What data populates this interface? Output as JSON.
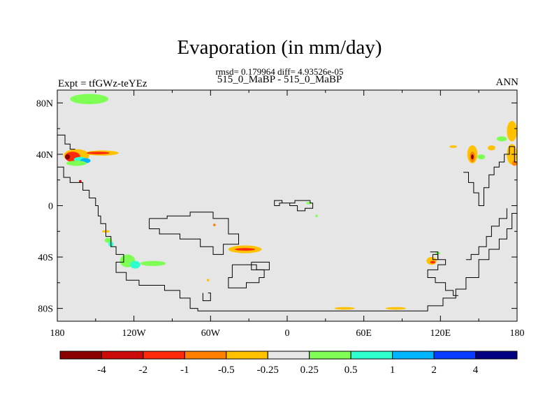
{
  "header": {
    "title": "Evaporation (in mm/day)",
    "stats": "rmsd= 0.179964 diff= 4.93526e-05",
    "cases": "515_0_MaBP - 515_0_MaBP",
    "expt": "Expt = tfGWz-teYEz",
    "season": "ANN"
  },
  "chart_data": {
    "type": "heatmap",
    "title": "Evaporation (in mm/day)",
    "subtitle": "515_0_MaBP - 515_0_MaBP",
    "stats": {
      "rmsd": 0.179964,
      "diff": 4.93526e-05
    },
    "left_label": "Expt = tfGWz-teYEz",
    "right_label": "ANN",
    "xlim": [
      -180,
      180
    ],
    "ylim": [
      -90,
      90
    ],
    "x_ticks": [
      {
        "value": -180,
        "label": "180"
      },
      {
        "value": -120,
        "label": "120W"
      },
      {
        "value": -60,
        "label": "60W"
      },
      {
        "value": 0,
        "label": "0"
      },
      {
        "value": 60,
        "label": "60E"
      },
      {
        "value": 120,
        "label": "120E"
      },
      {
        "value": 180,
        "label": "180"
      }
    ],
    "y_ticks": [
      {
        "value": 80,
        "label": "80N"
      },
      {
        "value": 40,
        "label": "40N"
      },
      {
        "value": 0,
        "label": "0"
      },
      {
        "value": -40,
        "label": "40S"
      },
      {
        "value": -80,
        "label": "80S"
      }
    ],
    "background_color": "#e6e6e6",
    "colorbar": {
      "levels": [
        "-4",
        "-2",
        "-1",
        "-0.5",
        "-0.25",
        "0.25",
        "0.5",
        "1",
        "2",
        "4"
      ],
      "colors": [
        "#8b0000",
        "#cc0a0a",
        "#ff2a0a",
        "#ff7f00",
        "#ffc100",
        "#e6e6e6",
        "#7fff55",
        "#2fffcf",
        "#00b4ff",
        "#0a3cff",
        "#000080"
      ]
    },
    "anomalies": [
      {
        "lon": -155,
        "lat": 83,
        "rx": 15,
        "ry": 4,
        "color": "#7fff55"
      },
      {
        "lon": -165,
        "lat": 39,
        "rx": 10,
        "ry": 5,
        "color": "#ffc100"
      },
      {
        "lon": -168,
        "lat": 38,
        "rx": 6,
        "ry": 4,
        "color": "#ff2a0a"
      },
      {
        "lon": -172,
        "lat": 38,
        "rx": 2,
        "ry": 2,
        "color": "#8b0000"
      },
      {
        "lon": -162,
        "lat": 36,
        "rx": 5,
        "ry": 2,
        "color": "#2fffcf"
      },
      {
        "lon": -158,
        "lat": 35,
        "rx": 4,
        "ry": 2,
        "color": "#00b4ff"
      },
      {
        "lon": -145,
        "lat": 41,
        "rx": 13,
        "ry": 2,
        "color": "#ffc100"
      },
      {
        "lon": -148,
        "lat": 41,
        "rx": 9,
        "ry": 1,
        "color": "#ff2a0a"
      },
      {
        "lon": -165,
        "lat": 33,
        "rx": 8,
        "ry": 2,
        "color": "#7fff55"
      },
      {
        "lon": -162,
        "lat": 19,
        "rx": 1,
        "ry": 1,
        "color": "#cc0a0a"
      },
      {
        "lon": -142,
        "lat": -20,
        "rx": 3,
        "ry": 1,
        "color": "#ffc100"
      },
      {
        "lon": -140,
        "lat": -27,
        "rx": 3,
        "ry": 2,
        "color": "#7fff55"
      },
      {
        "lon": -138,
        "lat": -30,
        "rx": 2,
        "ry": 2,
        "color": "#2fffcf"
      },
      {
        "lon": -125,
        "lat": -43,
        "rx": 6,
        "ry": 5,
        "color": "#7fff55"
      },
      {
        "lon": -119,
        "lat": -46,
        "rx": 4,
        "ry": 3,
        "color": "#2fffcf"
      },
      {
        "lon": -105,
        "lat": -45,
        "rx": 10,
        "ry": 2,
        "color": "#7fff55"
      },
      {
        "lon": -62,
        "lat": -58,
        "rx": 1,
        "ry": 1,
        "color": "#ffc100"
      },
      {
        "lon": -57,
        "lat": -15,
        "rx": 1,
        "ry": 1,
        "color": "#ff7f00"
      },
      {
        "lon": -33,
        "lat": -34,
        "rx": 13,
        "ry": 3,
        "color": "#ffc100"
      },
      {
        "lon": -33,
        "lat": -34,
        "rx": 8,
        "ry": 1,
        "color": "#ff2a0a"
      },
      {
        "lon": 17,
        "lat": 2,
        "rx": 2,
        "ry": 1,
        "color": "#7fff55"
      },
      {
        "lon": 23,
        "lat": -8,
        "rx": 1,
        "ry": 1,
        "color": "#7fff55"
      },
      {
        "lon": 45,
        "lat": -80,
        "rx": 8,
        "ry": 1,
        "color": "#ffc100"
      },
      {
        "lon": 85,
        "lat": -80,
        "rx": 8,
        "ry": 1,
        "color": "#ffc100"
      },
      {
        "lon": 113,
        "lat": -43,
        "rx": 4,
        "ry": 3,
        "color": "#ffc100"
      },
      {
        "lon": 114,
        "lat": -44,
        "rx": 2,
        "ry": 1,
        "color": "#ff2a0a"
      },
      {
        "lon": 118,
        "lat": -37,
        "rx": 2,
        "ry": 1,
        "color": "#7fff55"
      },
      {
        "lon": 130,
        "lat": 46,
        "rx": 3,
        "ry": 1,
        "color": "#ffc100"
      },
      {
        "lon": 145,
        "lat": 40,
        "rx": 4,
        "ry": 7,
        "color": "#ffc100"
      },
      {
        "lon": 145,
        "lat": 38,
        "rx": 2,
        "ry": 4,
        "color": "#ff7f00"
      },
      {
        "lon": 145,
        "lat": 38,
        "rx": 1,
        "ry": 2,
        "color": "#8b0000"
      },
      {
        "lon": 152,
        "lat": 38,
        "rx": 3,
        "ry": 2,
        "color": "#7fff55"
      },
      {
        "lon": 160,
        "lat": 45,
        "rx": 3,
        "ry": 2,
        "color": "#ffc100"
      },
      {
        "lon": 168,
        "lat": 52,
        "rx": 4,
        "ry": 2,
        "color": "#7fff55"
      },
      {
        "lon": 176,
        "lat": 58,
        "rx": 4,
        "ry": 8,
        "color": "#ffc100"
      },
      {
        "lon": 176,
        "lat": 40,
        "rx": 4,
        "ry": 8,
        "color": "#ffc100"
      },
      {
        "lon": 178,
        "lat": 33,
        "rx": 2,
        "ry": 2,
        "color": "#ff7f00"
      }
    ],
    "coastlines": [
      [
        [
          -180,
          30
        ],
        [
          -175,
          30
        ],
        [
          -175,
          22
        ],
        [
          -170,
          22
        ],
        [
          -170,
          18
        ],
        [
          -160,
          18
        ],
        [
          -160,
          12
        ],
        [
          -155,
          12
        ],
        [
          -155,
          6
        ],
        [
          -150,
          6
        ],
        [
          -150,
          0
        ],
        [
          -148,
          0
        ],
        [
          -148,
          -8
        ],
        [
          -146,
          -8
        ],
        [
          -146,
          -14
        ],
        [
          -142,
          -14
        ],
        [
          -142,
          -24
        ],
        [
          -138,
          -24
        ],
        [
          -138,
          -32
        ],
        [
          -134,
          -32
        ],
        [
          -134,
          -38
        ],
        [
          -128,
          -38
        ],
        [
          -128,
          -44
        ],
        [
          -134,
          -44
        ],
        [
          -134,
          -52
        ],
        [
          -126,
          -52
        ],
        [
          -126,
          -58
        ],
        [
          -116,
          -58
        ],
        [
          -116,
          -62
        ],
        [
          -96,
          -62
        ],
        [
          -96,
          -66
        ],
        [
          -84,
          -66
        ],
        [
          -84,
          -72
        ],
        [
          -76,
          -72
        ],
        [
          -76,
          -80
        ],
        [
          -70,
          -80
        ],
        [
          -70,
          -82
        ],
        [
          40,
          -82
        ],
        [
          110,
          -82
        ],
        [
          110,
          -78
        ],
        [
          122,
          -78
        ],
        [
          122,
          -72
        ],
        [
          132,
          -72
        ],
        [
          132,
          -65
        ],
        [
          140,
          -65
        ],
        [
          140,
          -56
        ],
        [
          150,
          -56
        ],
        [
          150,
          -42
        ],
        [
          158,
          -42
        ],
        [
          158,
          -34
        ],
        [
          166,
          -34
        ],
        [
          166,
          -26
        ],
        [
          172,
          -26
        ],
        [
          172,
          -18
        ],
        [
          176,
          -18
        ],
        [
          176,
          -6
        ],
        [
          180,
          -6
        ]
      ],
      [
        [
          -108,
          -10
        ],
        [
          -94,
          -10
        ],
        [
          -94,
          -8
        ],
        [
          -76,
          -8
        ],
        [
          -76,
          -5
        ],
        [
          -58,
          -5
        ],
        [
          -58,
          -10
        ],
        [
          -46,
          -10
        ],
        [
          -46,
          -22
        ],
        [
          -38,
          -22
        ],
        [
          -38,
          -30
        ],
        [
          -50,
          -30
        ],
        [
          -50,
          -38
        ],
        [
          -58,
          -38
        ],
        [
          -58,
          -32
        ],
        [
          -68,
          -32
        ],
        [
          -68,
          -26
        ],
        [
          -84,
          -26
        ],
        [
          -84,
          -22
        ],
        [
          -100,
          -22
        ],
        [
          -100,
          -18
        ],
        [
          -108,
          -18
        ],
        [
          -108,
          -10
        ]
      ],
      [
        [
          -43,
          -46
        ],
        [
          -24,
          -46
        ],
        [
          -24,
          -50
        ],
        [
          -18,
          -50
        ],
        [
          -18,
          -56
        ],
        [
          -22,
          -56
        ],
        [
          -22,
          -60
        ],
        [
          -32,
          -60
        ],
        [
          -32,
          -64
        ],
        [
          -46,
          -64
        ],
        [
          -46,
          -56
        ],
        [
          -43,
          -56
        ],
        [
          -43,
          -46
        ]
      ],
      [
        [
          -28,
          -44
        ],
        [
          -14,
          -44
        ],
        [
          -14,
          -50
        ],
        [
          -28,
          -50
        ],
        [
          -28,
          -44
        ]
      ],
      [
        [
          -10,
          0
        ],
        [
          -6,
          0
        ],
        [
          -6,
          2
        ],
        [
          2,
          2
        ],
        [
          2,
          0
        ],
        [
          8,
          0
        ],
        [
          8,
          -4
        ],
        [
          14,
          -4
        ],
        [
          14,
          -2
        ],
        [
          20,
          -2
        ],
        [
          20,
          2
        ],
        [
          18,
          2
        ],
        [
          18,
          4
        ],
        [
          6,
          4
        ],
        [
          6,
          2
        ],
        [
          -4,
          2
        ],
        [
          -4,
          4
        ],
        [
          -10,
          4
        ],
        [
          -10,
          0
        ]
      ],
      [
        [
          112,
          -36
        ],
        [
          118,
          -36
        ],
        [
          118,
          -42
        ],
        [
          124,
          -42
        ],
        [
          124,
          -46
        ],
        [
          118,
          -46
        ],
        [
          118,
          -50
        ],
        [
          110,
          -50
        ],
        [
          110,
          -56
        ],
        [
          116,
          -56
        ],
        [
          116,
          -60
        ],
        [
          124,
          -60
        ],
        [
          124,
          -66
        ],
        [
          130,
          -66
        ],
        [
          130,
          -70
        ],
        [
          134,
          -70
        ]
      ],
      [
        [
          114,
          -38
        ],
        [
          118,
          -38
        ],
        [
          118,
          -42
        ],
        [
          114,
          -42
        ],
        [
          114,
          -38
        ]
      ],
      [
        [
          140,
          -42
        ],
        [
          144,
          -42
        ],
        [
          144,
          -38
        ],
        [
          150,
          -38
        ],
        [
          150,
          -32
        ],
        [
          156,
          -32
        ],
        [
          156,
          -24
        ],
        [
          160,
          -24
        ],
        [
          160,
          -16
        ],
        [
          166,
          -16
        ],
        [
          166,
          -10
        ],
        [
          172,
          -10
        ],
        [
          172,
          -2
        ]
      ],
      [
        [
          138,
          26
        ],
        [
          142,
          26
        ],
        [
          142,
          18
        ],
        [
          146,
          18
        ],
        [
          146,
          10
        ],
        [
          150,
          10
        ],
        [
          150,
          0
        ],
        [
          154,
          0
        ],
        [
          154,
          14
        ],
        [
          158,
          14
        ],
        [
          158,
          24
        ],
        [
          162,
          24
        ],
        [
          162,
          30
        ],
        [
          166,
          30
        ],
        [
          166,
          34
        ],
        [
          170,
          34
        ],
        [
          170,
          40
        ],
        [
          174,
          40
        ],
        [
          174,
          46
        ],
        [
          178,
          46
        ],
        [
          178,
          34
        ],
        [
          180,
          34
        ]
      ],
      [
        [
          -180,
          55
        ],
        [
          -174,
          55
        ],
        [
          -174,
          48
        ],
        [
          -170,
          48
        ],
        [
          -170,
          44
        ],
        [
          -166,
          44
        ]
      ],
      [
        [
          -62,
          -68
        ],
        [
          -60,
          -68
        ],
        [
          -60,
          -74
        ],
        [
          -66,
          -74
        ],
        [
          -66,
          -68
        ]
      ]
    ]
  }
}
